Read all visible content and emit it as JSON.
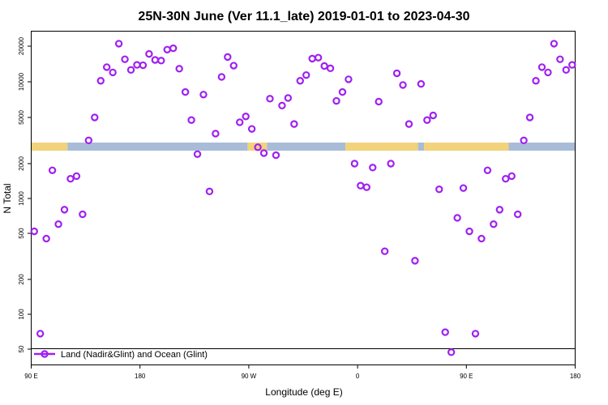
{
  "chart_data": {
    "type": "scatter",
    "title": "25N-30N June (Ver 11.1_late)   2019-01-01 to 2023-04-30",
    "xlabel": "Longitude (deg E)",
    "ylabel": "N Total",
    "x_tick_labels": [
      "90 E",
      "180",
      "90 W",
      "0",
      "90 E",
      "180"
    ],
    "y_upper": {
      "scale": "log",
      "ticks": [
        5000,
        10000,
        20000
      ]
    },
    "y_lower": {
      "scale": "log",
      "ticks": [
        50,
        100,
        200,
        500,
        1000,
        2000
      ]
    },
    "legend": {
      "label": "Land (Nadir&Glint) and Ocean (Glint)",
      "position": "bottom-left"
    },
    "colors": {
      "series": "#a020f0",
      "ocean": "#a8bcd8",
      "land": "#f2d27a"
    },
    "land_ocean_strip": [
      {
        "kind": "land",
        "from": 90,
        "to": 120
      },
      {
        "kind": "ocean",
        "from": 120,
        "to": 269
      },
      {
        "kind": "land",
        "from": 269,
        "to": 285
      },
      {
        "kind": "ocean",
        "from": 285,
        "to": 350
      },
      {
        "kind": "land",
        "from": 350,
        "to": 410
      },
      {
        "kind": "ocean",
        "from": 410,
        "to": 415
      },
      {
        "kind": "land",
        "from": 415,
        "to": 485
      },
      {
        "kind": "ocean",
        "from": 485,
        "to": 540
      }
    ],
    "series": [
      {
        "name": "Land (Nadir&Glint) and Ocean (Glint)",
        "points": [
          {
            "lon": 92.5,
            "n": 520,
            "panel": "lower"
          },
          {
            "lon": 97.5,
            "n": 68,
            "panel": "lower"
          },
          {
            "lon": 102.5,
            "n": 450,
            "panel": "lower"
          },
          {
            "lon": 107.5,
            "n": 1750,
            "panel": "lower"
          },
          {
            "lon": 112.5,
            "n": 600,
            "panel": "lower"
          },
          {
            "lon": 117.5,
            "n": 800,
            "panel": "lower"
          },
          {
            "lon": 122.5,
            "n": 1480,
            "panel": "lower"
          },
          {
            "lon": 127.5,
            "n": 1560,
            "panel": "lower"
          },
          {
            "lon": 132.5,
            "n": 730,
            "panel": "lower"
          },
          {
            "lon": 137.5,
            "n": 3200,
            "panel": "upper"
          },
          {
            "lon": 142.5,
            "n": 5000,
            "panel": "upper"
          },
          {
            "lon": 147.5,
            "n": 10200,
            "panel": "upper"
          },
          {
            "lon": 152.5,
            "n": 13300,
            "panel": "upper"
          },
          {
            "lon": 157.5,
            "n": 12000,
            "panel": "upper"
          },
          {
            "lon": 162.5,
            "n": 21000,
            "panel": "upper"
          },
          {
            "lon": 167.5,
            "n": 15500,
            "panel": "upper"
          },
          {
            "lon": 172.5,
            "n": 12600,
            "panel": "upper"
          },
          {
            "lon": 177.5,
            "n": 13900,
            "panel": "upper"
          },
          {
            "lon": 182.5,
            "n": 13800,
            "panel": "upper"
          },
          {
            "lon": 187.5,
            "n": 17200,
            "panel": "upper"
          },
          {
            "lon": 192.5,
            "n": 15300,
            "panel": "upper"
          },
          {
            "lon": 197.5,
            "n": 15100,
            "panel": "upper"
          },
          {
            "lon": 202.5,
            "n": 18700,
            "panel": "upper"
          },
          {
            "lon": 207.5,
            "n": 19200,
            "panel": "upper"
          },
          {
            "lon": 212.5,
            "n": 12900,
            "panel": "upper"
          },
          {
            "lon": 217.5,
            "n": 8200,
            "panel": "upper"
          },
          {
            "lon": 222.5,
            "n": 4750,
            "panel": "upper"
          },
          {
            "lon": 227.5,
            "n": 2450,
            "panel": "upper"
          },
          {
            "lon": 232.5,
            "n": 7800,
            "panel": "upper"
          },
          {
            "lon": 237.5,
            "n": 1150,
            "panel": "lower"
          },
          {
            "lon": 242.5,
            "n": 3650,
            "panel": "upper"
          },
          {
            "lon": 247.5,
            "n": 11000,
            "panel": "upper"
          },
          {
            "lon": 252.5,
            "n": 16200,
            "panel": "upper"
          },
          {
            "lon": 257.5,
            "n": 13700,
            "panel": "upper"
          },
          {
            "lon": 262.5,
            "n": 4550,
            "panel": "upper"
          },
          {
            "lon": 267.5,
            "n": 5100,
            "panel": "upper"
          },
          {
            "lon": 272.5,
            "n": 4000,
            "panel": "upper"
          },
          {
            "lon": 277.5,
            "n": 2800,
            "panel": "upper"
          },
          {
            "lon": 282.5,
            "n": 2500,
            "panel": "upper"
          },
          {
            "lon": 287.5,
            "n": 7200,
            "panel": "upper"
          },
          {
            "lon": 292.5,
            "n": 2400,
            "panel": "upper"
          },
          {
            "lon": 297.5,
            "n": 6300,
            "panel": "upper"
          },
          {
            "lon": 302.5,
            "n": 7300,
            "panel": "upper"
          },
          {
            "lon": 307.5,
            "n": 4400,
            "panel": "upper"
          },
          {
            "lon": 312.5,
            "n": 10200,
            "panel": "upper"
          },
          {
            "lon": 317.5,
            "n": 11400,
            "panel": "upper"
          },
          {
            "lon": 322.5,
            "n": 15700,
            "panel": "upper"
          },
          {
            "lon": 327.5,
            "n": 16000,
            "panel": "upper"
          },
          {
            "lon": 332.5,
            "n": 13600,
            "panel": "upper"
          },
          {
            "lon": 337.5,
            "n": 13000,
            "panel": "upper"
          },
          {
            "lon": 342.5,
            "n": 6900,
            "panel": "upper"
          },
          {
            "lon": 347.5,
            "n": 8200,
            "panel": "upper"
          },
          {
            "lon": 352.5,
            "n": 10500,
            "panel": "upper"
          },
          {
            "lon": 357.5,
            "n": 2000,
            "panel": "lower"
          },
          {
            "lon": 362.5,
            "n": 1290,
            "panel": "lower"
          },
          {
            "lon": 367.5,
            "n": 1250,
            "panel": "lower"
          },
          {
            "lon": 372.5,
            "n": 1850,
            "panel": "lower"
          },
          {
            "lon": 377.5,
            "n": 6800,
            "panel": "upper"
          },
          {
            "lon": 382.5,
            "n": 350,
            "panel": "lower"
          },
          {
            "lon": 387.5,
            "n": 2000,
            "panel": "lower"
          },
          {
            "lon": 392.5,
            "n": 11800,
            "panel": "upper"
          },
          {
            "lon": 397.5,
            "n": 9400,
            "panel": "upper"
          },
          {
            "lon": 402.5,
            "n": 4400,
            "panel": "upper"
          },
          {
            "lon": 407.5,
            "n": 290,
            "panel": "lower"
          },
          {
            "lon": 412.5,
            "n": 9600,
            "panel": "upper"
          },
          {
            "lon": 417.5,
            "n": 4750,
            "panel": "upper"
          },
          {
            "lon": 422.5,
            "n": 5200,
            "panel": "upper"
          },
          {
            "lon": 427.5,
            "n": 1200,
            "panel": "lower"
          },
          {
            "lon": 432.5,
            "n": 70,
            "panel": "lower"
          },
          {
            "lon": 437.5,
            "n": 47,
            "panel": "lower"
          },
          {
            "lon": 442.5,
            "n": 680,
            "panel": "lower"
          },
          {
            "lon": 447.5,
            "n": 1230,
            "panel": "lower"
          },
          {
            "lon": 452.5,
            "n": 520,
            "panel": "lower"
          },
          {
            "lon": 457.5,
            "n": 68,
            "panel": "lower"
          },
          {
            "lon": 462.5,
            "n": 450,
            "panel": "lower"
          },
          {
            "lon": 467.5,
            "n": 1750,
            "panel": "lower"
          },
          {
            "lon": 472.5,
            "n": 600,
            "panel": "lower"
          },
          {
            "lon": 477.5,
            "n": 800,
            "panel": "lower"
          },
          {
            "lon": 482.5,
            "n": 1480,
            "panel": "lower"
          },
          {
            "lon": 487.5,
            "n": 1560,
            "panel": "lower"
          },
          {
            "lon": 492.5,
            "n": 730,
            "panel": "lower"
          },
          {
            "lon": 497.5,
            "n": 3200,
            "panel": "upper"
          },
          {
            "lon": 502.5,
            "n": 5000,
            "panel": "upper"
          },
          {
            "lon": 507.5,
            "n": 10200,
            "panel": "upper"
          },
          {
            "lon": 512.5,
            "n": 13300,
            "panel": "upper"
          },
          {
            "lon": 517.5,
            "n": 12000,
            "panel": "upper"
          },
          {
            "lon": 522.5,
            "n": 21000,
            "panel": "upper"
          },
          {
            "lon": 527.5,
            "n": 15500,
            "panel": "upper"
          },
          {
            "lon": 532.5,
            "n": 12600,
            "panel": "upper"
          },
          {
            "lon": 537.5,
            "n": 13900,
            "panel": "upper"
          }
        ]
      }
    ]
  }
}
